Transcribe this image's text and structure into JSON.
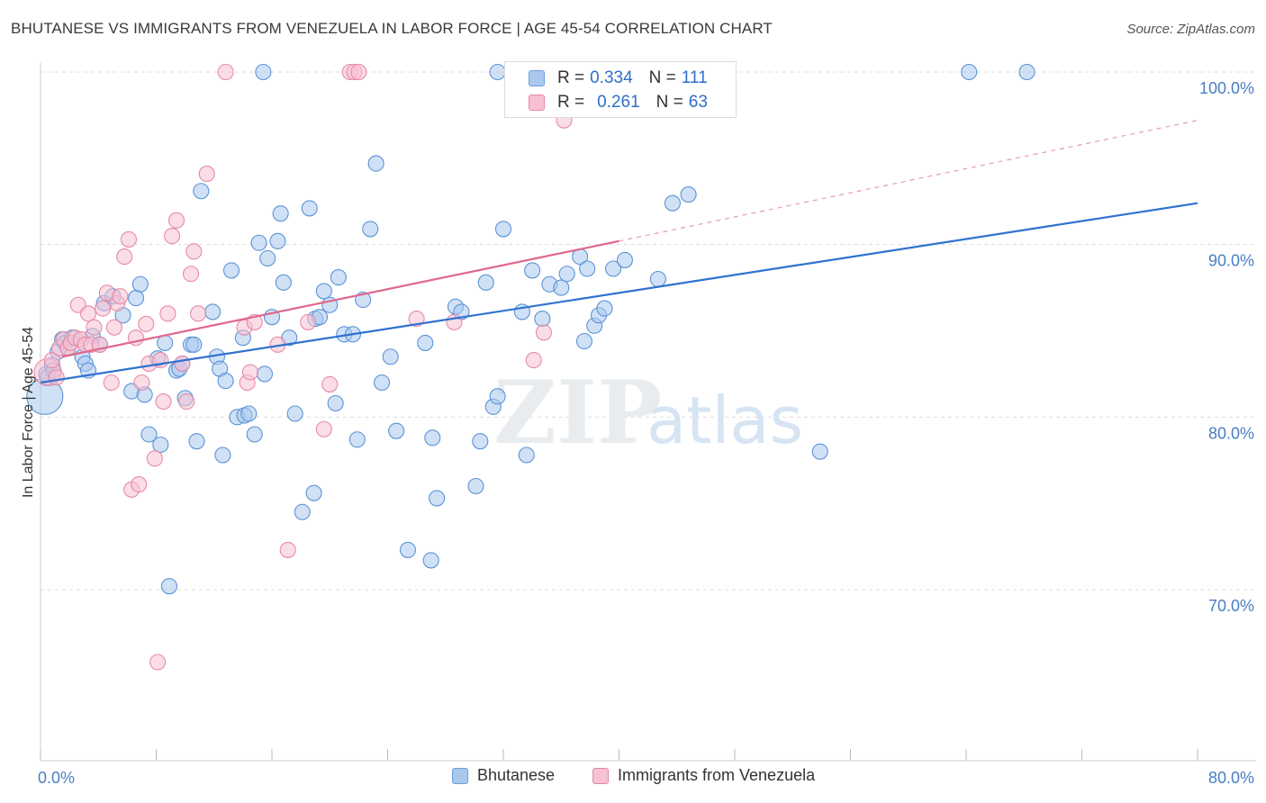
{
  "title": "BHUTANESE VS IMMIGRANTS FROM VENEZUELA IN LABOR FORCE | AGE 45-54 CORRELATION CHART",
  "source": "Source: ZipAtlas.com",
  "watermark": {
    "zip": "ZIP",
    "atlas": "atlas"
  },
  "legend": {
    "r_label": "R =",
    "n_label": "N =",
    "rows": [
      {
        "r": "0.334",
        "n": "111",
        "color": "#aac8ee",
        "edge": "#6a9fdc"
      },
      {
        "r": "0.261",
        "n": "63",
        "color": "#f7c1d1",
        "edge": "#e68aa8"
      }
    ]
  },
  "bottom_legend": [
    "Bhutanese",
    "Immigrants from Venezuela"
  ],
  "chart_data": {
    "type": "scatter",
    "title": "BHUTANESE VS IMMIGRANTS FROM VENEZUELA IN LABOR FORCE | AGE 45-54 CORRELATION CHART",
    "xlabel": "",
    "ylabel": "In Labor Force | Age 45-54",
    "xlim": [
      0,
      80
    ],
    "ylim": [
      60.5,
      101
    ],
    "x_tick_labels": [
      {
        "value": 0,
        "label": "0.0%"
      },
      {
        "value": 80,
        "label": "80.0%"
      }
    ],
    "y_tick_labels": [
      {
        "value": 100,
        "label": "100.0%"
      },
      {
        "value": 90,
        "label": "90.0%"
      },
      {
        "value": 80,
        "label": "80.0%"
      },
      {
        "value": 70,
        "label": "70.0%"
      }
    ],
    "grid": true,
    "series": [
      {
        "name": "Bhutanese",
        "color": "#aac8ee",
        "edge": "#5b93d6",
        "trend": {
          "x0": 0,
          "y0": 82.0,
          "x1": 80,
          "y1": 92.4,
          "color": "#2f72cf"
        },
        "points": [
          [
            0.3,
            81.2
          ],
          [
            0.4,
            82.5
          ],
          [
            0.5,
            82.3
          ],
          [
            0.8,
            83.0
          ],
          [
            0.9,
            82.7
          ],
          [
            1.2,
            83.8
          ],
          [
            1.5,
            84.5
          ],
          [
            1.7,
            84.3
          ],
          [
            1.9,
            84.0
          ],
          [
            2.2,
            84.6
          ],
          [
            2.9,
            83.5
          ],
          [
            3.1,
            83.1
          ],
          [
            3.3,
            82.7
          ],
          [
            3.6,
            84.7
          ],
          [
            4.1,
            84.2
          ],
          [
            4.4,
            86.6
          ],
          [
            5.0,
            87.0
          ],
          [
            5.7,
            85.9
          ],
          [
            6.3,
            81.5
          ],
          [
            6.6,
            86.9
          ],
          [
            6.9,
            87.7
          ],
          [
            7.2,
            81.3
          ],
          [
            7.5,
            79.0
          ],
          [
            8.1,
            83.4
          ],
          [
            8.3,
            78.4
          ],
          [
            8.6,
            84.3
          ],
          [
            8.9,
            70.2
          ],
          [
            9.4,
            82.7
          ],
          [
            9.6,
            82.8
          ],
          [
            9.8,
            83.1
          ],
          [
            10.0,
            81.1
          ],
          [
            10.4,
            84.2
          ],
          [
            10.6,
            84.2
          ],
          [
            10.8,
            78.6
          ],
          [
            11.1,
            93.1
          ],
          [
            11.9,
            86.1
          ],
          [
            12.2,
            83.5
          ],
          [
            12.4,
            82.8
          ],
          [
            12.6,
            77.8
          ],
          [
            12.8,
            82.1
          ],
          [
            13.2,
            88.5
          ],
          [
            13.6,
            80.0
          ],
          [
            14.0,
            84.6
          ],
          [
            14.1,
            80.1
          ],
          [
            14.4,
            80.2
          ],
          [
            14.8,
            79.0
          ],
          [
            15.1,
            90.1
          ],
          [
            15.5,
            82.5
          ],
          [
            15.7,
            89.2
          ],
          [
            16.0,
            85.8
          ],
          [
            16.4,
            90.2
          ],
          [
            16.6,
            91.8
          ],
          [
            16.8,
            87.8
          ],
          [
            17.2,
            84.6
          ],
          [
            17.6,
            80.2
          ],
          [
            18.1,
            74.5
          ],
          [
            18.6,
            92.1
          ],
          [
            18.9,
            75.6
          ],
          [
            19.0,
            85.7
          ],
          [
            19.3,
            85.8
          ],
          [
            19.6,
            87.3
          ],
          [
            20.0,
            86.5
          ],
          [
            20.4,
            80.8
          ],
          [
            20.6,
            88.1
          ],
          [
            21.0,
            84.8
          ],
          [
            21.6,
            84.8
          ],
          [
            21.9,
            78.7
          ],
          [
            22.3,
            86.8
          ],
          [
            22.8,
            90.9
          ],
          [
            23.2,
            94.7
          ],
          [
            23.6,
            82.0
          ],
          [
            24.2,
            83.5
          ],
          [
            24.6,
            79.2
          ],
          [
            25.4,
            72.3
          ],
          [
            26.6,
            84.3
          ],
          [
            27.0,
            71.7
          ],
          [
            27.1,
            78.8
          ],
          [
            27.4,
            75.3
          ],
          [
            28.7,
            86.4
          ],
          [
            29.1,
            86.1
          ],
          [
            30.1,
            76.0
          ],
          [
            30.4,
            78.6
          ],
          [
            30.8,
            87.8
          ],
          [
            31.3,
            80.6
          ],
          [
            31.6,
            81.2
          ],
          [
            32.0,
            90.9
          ],
          [
            33.3,
            86.1
          ],
          [
            33.6,
            77.8
          ],
          [
            34.0,
            88.5
          ],
          [
            34.7,
            85.7
          ],
          [
            35.2,
            87.7
          ],
          [
            36.0,
            87.5
          ],
          [
            36.4,
            88.3
          ],
          [
            37.3,
            89.3
          ],
          [
            37.6,
            84.4
          ],
          [
            37.8,
            88.6
          ],
          [
            38.3,
            85.3
          ],
          [
            38.6,
            85.9
          ],
          [
            39.0,
            86.3
          ],
          [
            39.6,
            88.6
          ],
          [
            40.4,
            89.1
          ],
          [
            42.7,
            88.0
          ],
          [
            43.7,
            92.4
          ],
          [
            44.8,
            92.9
          ],
          [
            53.9,
            78.0
          ],
          [
            15.4,
            100.0
          ],
          [
            31.6,
            100.0
          ],
          [
            64.2,
            100.0
          ],
          [
            68.2,
            100.0
          ]
        ]
      },
      {
        "name": "Immigrants from Venezuela",
        "color": "#f7c1d1",
        "edge": "#e68aa8",
        "trend": {
          "x0": 1.5,
          "y0": 83.5,
          "x1": 40.0,
          "y1": 90.2,
          "color": "#e0678d"
        },
        "trend_ext": {
          "x0": 40.0,
          "y0": 90.2,
          "x1": 80.0,
          "y1": 97.2
        },
        "points": [
          [
            0.5,
            82.6
          ],
          [
            0.8,
            83.3
          ],
          [
            1.1,
            82.3
          ],
          [
            1.3,
            84.0
          ],
          [
            1.6,
            84.5
          ],
          [
            1.9,
            84.0
          ],
          [
            2.1,
            84.3
          ],
          [
            2.4,
            84.6
          ],
          [
            2.6,
            86.5
          ],
          [
            2.8,
            84.5
          ],
          [
            3.1,
            84.2
          ],
          [
            3.3,
            86.0
          ],
          [
            3.5,
            84.2
          ],
          [
            3.7,
            85.2
          ],
          [
            4.1,
            84.2
          ],
          [
            4.3,
            86.3
          ],
          [
            4.6,
            87.2
          ],
          [
            4.9,
            82.0
          ],
          [
            5.1,
            85.2
          ],
          [
            5.3,
            86.6
          ],
          [
            5.5,
            87.0
          ],
          [
            5.8,
            89.3
          ],
          [
            6.1,
            90.3
          ],
          [
            6.3,
            75.8
          ],
          [
            6.6,
            84.6
          ],
          [
            6.8,
            76.1
          ],
          [
            7.0,
            82.0
          ],
          [
            7.3,
            85.4
          ],
          [
            7.5,
            83.1
          ],
          [
            7.9,
            77.6
          ],
          [
            8.1,
            65.8
          ],
          [
            8.3,
            83.3
          ],
          [
            8.5,
            80.9
          ],
          [
            8.8,
            86.0
          ],
          [
            9.1,
            90.5
          ],
          [
            9.4,
            91.4
          ],
          [
            9.8,
            83.1
          ],
          [
            10.1,
            80.9
          ],
          [
            10.4,
            88.3
          ],
          [
            10.6,
            89.6
          ],
          [
            10.9,
            86.0
          ],
          [
            11.5,
            94.1
          ],
          [
            12.8,
            100.0
          ],
          [
            14.1,
            85.2
          ],
          [
            14.3,
            82.0
          ],
          [
            14.5,
            82.6
          ],
          [
            14.8,
            85.5
          ],
          [
            16.4,
            84.2
          ],
          [
            17.1,
            72.3
          ],
          [
            18.5,
            85.5
          ],
          [
            19.6,
            79.3
          ],
          [
            20.0,
            81.9
          ],
          [
            21.4,
            100.0
          ],
          [
            21.7,
            100.0
          ],
          [
            22.0,
            100.0
          ],
          [
            26.0,
            85.7
          ],
          [
            28.6,
            85.5
          ],
          [
            34.1,
            83.3
          ],
          [
            34.8,
            84.9
          ],
          [
            36.2,
            97.2
          ]
        ]
      }
    ]
  }
}
